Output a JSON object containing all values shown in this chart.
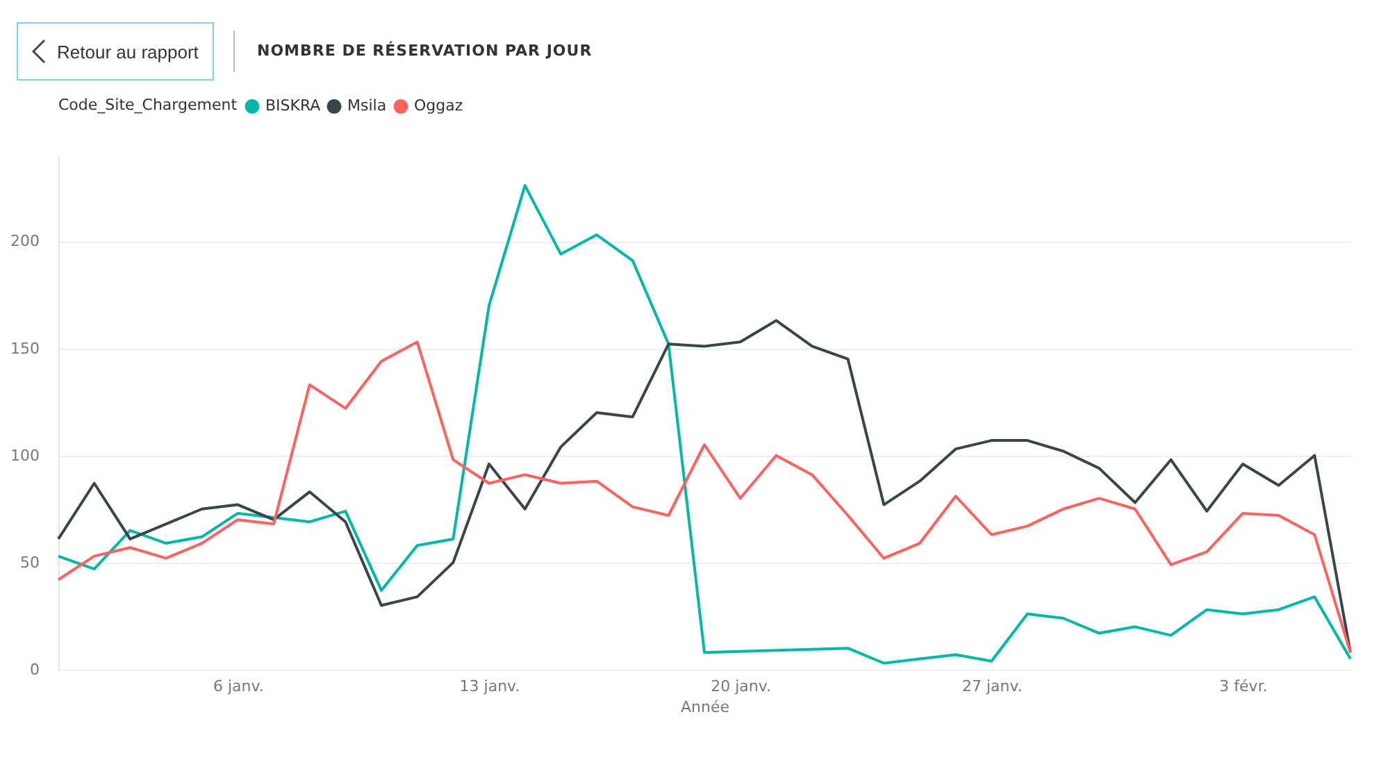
{
  "chart_data": {
    "type": "line",
    "title": "NOMBRE DE RÉSERVATION PAR JOUR",
    "xlabel": "Année",
    "legend_title": "Code_Site_Chargement",
    "annotations": [
      "Retour au rapport"
    ],
    "x": [
      "--01-01",
      "--01-02",
      "--01-03",
      "--01-04",
      "--01-05",
      "--01-06",
      "--01-07",
      "--01-08",
      "--01-09",
      "--01-10",
      "--01-11",
      "--01-12",
      "--01-13",
      "--01-14",
      "--01-15",
      "--01-16",
      "--01-17",
      "--01-18",
      "--01-19",
      "--01-20",
      "--01-21",
      "--01-22",
      "--01-23",
      "--01-24",
      "--01-25",
      "--01-26",
      "--01-27",
      "--01-28",
      "--01-29",
      "--01-30",
      "--01-31",
      "--02-01",
      "--02-02",
      "--02-03",
      "--02-04",
      "--02-05",
      "--02-06"
    ],
    "series": [
      {
        "name": "BISKRA",
        "color": "#01b8aa",
        "values": [
          53,
          47,
          65,
          59,
          62,
          73,
          71,
          69,
          74,
          37,
          58,
          61,
          170,
          226,
          194,
          203,
          191,
          152,
          8,
          8.5,
          9,
          9.5,
          10,
          3,
          5,
          7,
          4,
          26,
          24,
          17,
          20,
          16,
          28,
          26,
          28,
          34,
          5
        ]
      },
      {
        "name": "Msila",
        "color": "#374649",
        "values": [
          61,
          87,
          61,
          68,
          75,
          77,
          70,
          83,
          69,
          30,
          34,
          50,
          96,
          75,
          104,
          120,
          118,
          152,
          151,
          153,
          163,
          151,
          145,
          77,
          88,
          103,
          107,
          107,
          102,
          94,
          78,
          98,
          74,
          96,
          86,
          100,
          8
        ]
      },
      {
        "name": "Oggaz",
        "color": "#fd625e",
        "values": [
          42,
          53,
          57,
          52,
          59,
          70,
          68,
          133,
          122,
          144,
          153,
          98,
          87,
          91,
          87,
          88,
          76,
          72,
          105,
          80,
          100,
          91,
          72,
          52,
          59,
          81,
          63,
          67,
          75,
          80,
          75,
          49,
          55,
          73,
          72,
          63,
          8
        ]
      }
    ],
    "xlim": [
      "--01-01",
      "--02-06"
    ],
    "xticks": [
      {
        "value": "--01-06",
        "label": "6 janv."
      },
      {
        "value": "--01-13",
        "label": "13 janv."
      },
      {
        "value": "--01-20",
        "label": "20 janv."
      },
      {
        "value": "--01-27",
        "label": "27 janv."
      },
      {
        "value": "--02-03",
        "label": "3 févr."
      }
    ],
    "ylim": [
      0,
      240
    ],
    "yticks": [
      0,
      50,
      100,
      150,
      200
    ],
    "grid": "y",
    "legend": "top left",
    "marker": "none",
    "line_style": "solid"
  }
}
